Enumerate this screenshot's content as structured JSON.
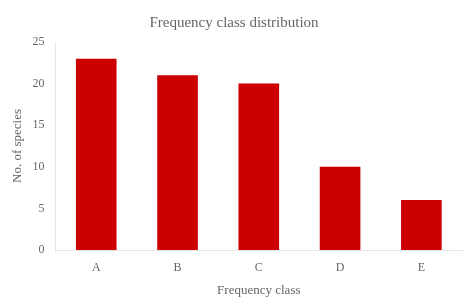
{
  "chart_data": {
    "type": "bar",
    "title": "Frequency class distribution",
    "xlabel": "Frequency class",
    "ylabel": "No. of species",
    "categories": [
      "A",
      "B",
      "C",
      "D",
      "E"
    ],
    "values": [
      23,
      21,
      20,
      10,
      6
    ],
    "color": "#cc0000",
    "ylim": [
      0,
      25
    ],
    "yticks": [
      0,
      5,
      10,
      15,
      20,
      25
    ],
    "grid": false
  }
}
